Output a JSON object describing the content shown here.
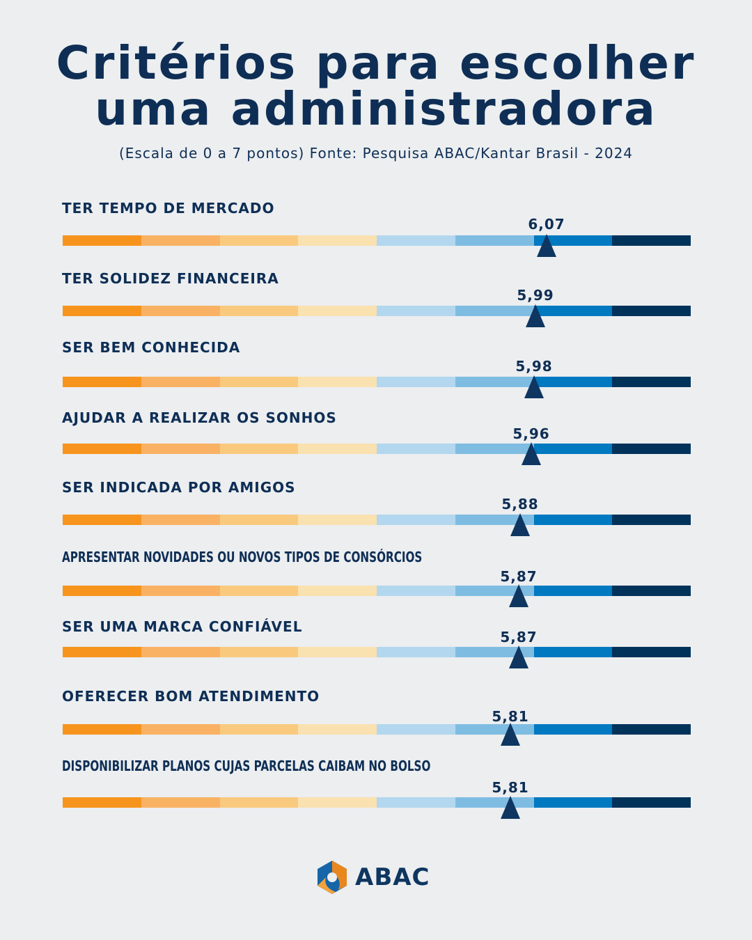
{
  "title_line1": "Critérios para escolher",
  "title_line2": "uma administradora",
  "subtitle": "(Escala de 0 a 7 pontos) Fonte: Pesquisa ABAC/Kantar Brasil -  2024",
  "logo": "ABAC",
  "chart_data": {
    "type": "bar",
    "scale": [
      0,
      7
    ],
    "segment_colors": [
      "#F7941D",
      "#F9B264",
      "#F9CA7E",
      "#FAE1B0",
      "#B3D7EE",
      "#7FBCE2",
      "#0079C1",
      "#00325A"
    ],
    "marker_color": "#0E3660",
    "categories": [
      "TER TEMPO DE MERCADO",
      "TER SOLIDEZ FINANCEIRA",
      "SER BEM CONHECIDA",
      "AJUDAR A REALIZAR OS SONHOS",
      "SER INDICADA POR AMIGOS",
      "APRESENTAR NOVIDADES OU NOVOS TIPOS DE CONSÓRCIOS",
      "SER UMA MARCA CONFIÁVEL",
      "OFERECER BOM ATENDIMENTO",
      "DISPONIBILIZAR PLANOS CUJAS PARCELAS CAIBAM NO BOLSO"
    ],
    "values": [
      6.07,
      5.99,
      5.98,
      5.96,
      5.88,
      5.87,
      5.87,
      5.81,
      5.81
    ],
    "value_labels": [
      "6,07",
      "5,99",
      "5,98",
      "5,96",
      "5,88",
      "5,87",
      "5,87",
      "5,81",
      "5,81"
    ]
  }
}
